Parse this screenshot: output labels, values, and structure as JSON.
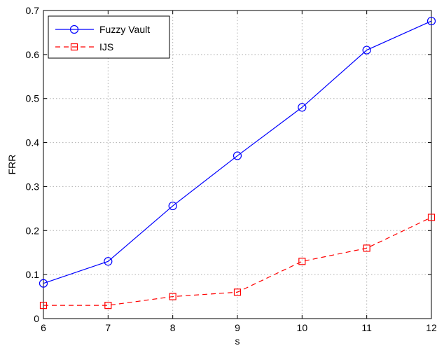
{
  "chart_data": {
    "type": "line",
    "title": "",
    "xlabel": "s",
    "ylabel": "FRR",
    "x": [
      6,
      7,
      8,
      9,
      10,
      11,
      12
    ],
    "xlim": [
      6,
      12
    ],
    "ylim": [
      0,
      0.7
    ],
    "xticks": [
      "6",
      "7",
      "8",
      "9",
      "10",
      "11",
      "12"
    ],
    "yticks": [
      "0",
      "0.1",
      "0.2",
      "0.3",
      "0.4",
      "0.5",
      "0.6",
      "0.7"
    ],
    "grid": true,
    "legend_position": "top-left",
    "series": [
      {
        "name": "Fuzzy Vault",
        "values": [
          0.08,
          0.13,
          0.256,
          0.37,
          0.48,
          0.61,
          0.676
        ],
        "color": "#0000ff",
        "line_style": "solid",
        "marker": "circle"
      },
      {
        "name": "IJS",
        "values": [
          0.03,
          0.03,
          0.05,
          0.06,
          0.13,
          0.16,
          0.23
        ],
        "color": "#ff0000",
        "line_style": "dashed",
        "marker": "square"
      }
    ]
  }
}
